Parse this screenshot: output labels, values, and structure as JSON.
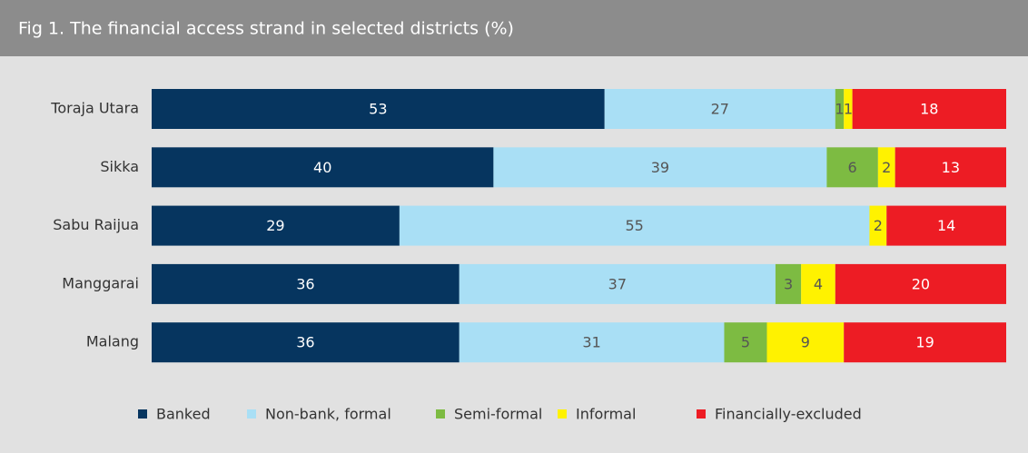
{
  "chart_data": {
    "type": "stacked_bar_horizontal",
    "title": "Fig 1. The financial access strand in selected districts (%)",
    "categories": [
      "Toraja Utara",
      "Sikka",
      "Sabu Raijua",
      "Manggarai",
      "Malang"
    ],
    "series": [
      {
        "name": "Banked",
        "color": "#06355f",
        "values": [
          53,
          40,
          29,
          36,
          36
        ]
      },
      {
        "name": "Non-bank, formal",
        "color": "#a9dff5",
        "values": [
          27,
          39,
          55,
          37,
          31
        ]
      },
      {
        "name": "Semi-formal",
        "color": "#7dbb42",
        "values": [
          1,
          6,
          null,
          3,
          5
        ]
      },
      {
        "name": "Informal",
        "color": "#fff200",
        "values": [
          1,
          2,
          2,
          4,
          9
        ]
      },
      {
        "name": "Financially-excluded",
        "color": "#ed1c24",
        "values": [
          18,
          13,
          14,
          20,
          19
        ]
      }
    ],
    "legend": "bottom"
  }
}
